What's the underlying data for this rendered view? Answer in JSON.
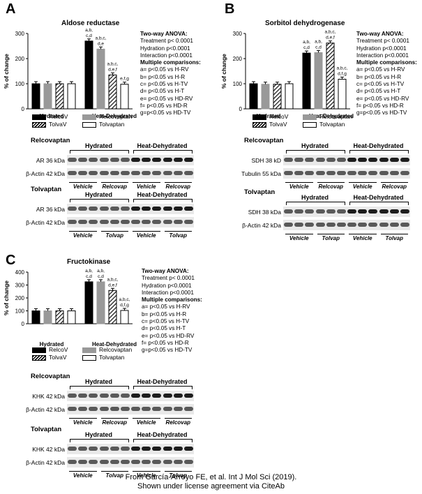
{
  "panels": [
    {
      "id": "A",
      "title": "Aldose reductase",
      "ylabel": "% of change",
      "yticks": [
        "0",
        "100",
        "200",
        "300"
      ],
      "ymax": 300,
      "xlabels": [
        "Hydrated",
        "Heat-Dehydrated"
      ],
      "values": [
        100,
        100,
        100,
        100,
        270,
        238,
        135,
        98
      ],
      "annotations": [
        "",
        "",
        "",
        "",
        "a,b,\nc,d",
        "a,b,c,\nd,e",
        "a,b,c,\nd,e,f",
        "e,f,g"
      ],
      "stats": [
        "Two-way ANOVA:",
        "Treatment p< 0.0001",
        "Hydration p<0.0001",
        "Interaction p<0.0001",
        "Multiple comparisons:",
        "a= p<0.05 vs H-RV",
        "b= p<0.05 vs H-R",
        "c= p<0.05 vs H-TV",
        "d= p<0.05 vs H-T",
        "e= p<0.05 vs HD-RV",
        "f= p<0.05 vs HD-R",
        "g=p<0.05 vs HD-TV"
      ],
      "blots": [
        {
          "head": "Relcovaptan",
          "groups": [
            "Hydrated",
            "Heat-Dehydrated"
          ],
          "rows": [
            "AR 36 kDa",
            "β-Actin 42 kDa"
          ],
          "lanes": [
            "Vehicle",
            "Relcovap",
            "Vehicle",
            "Relcovap"
          ]
        },
        {
          "head": "Tolvaptan",
          "groups": [
            "Hydrated",
            "Heat-Dehydrated"
          ],
          "rows": [
            "AR 36 kDa",
            "β-Actin 42 kDa"
          ],
          "lanes": [
            "Vehicle",
            "Tolvap",
            "Vehicle",
            "Tolvap"
          ]
        }
      ]
    },
    {
      "id": "B",
      "title": "Sorbitol dehydrogenase",
      "ylabel": "% of change",
      "yticks": [
        "0",
        "100",
        "200",
        "300"
      ],
      "ymax": 300,
      "xlabels": [
        "Hydrated",
        "Heat-Dehydrated"
      ],
      "values": [
        100,
        98,
        98,
        100,
        222,
        224,
        262,
        118
      ],
      "annotations": [
        "",
        "",
        "",
        "",
        "a,b,\nc,d",
        "a,b,\nc,d",
        "a,b,c,\nd,e,f",
        "a,b,c,\nd,f,g"
      ],
      "stats": [
        "Two-way ANOVA:",
        "Treatment p< 0.0001",
        "Hydration p<0.0001",
        "Interaction p<0.0001",
        "Multiple comparisons:",
        "a= p<0.05 vs H-RV",
        "b= p<0.05 vs H-R",
        "c= p<0.05 vs H-TV",
        "d= p<0.05 vs H-T",
        "e= p<0.05 vs HD-RV",
        "f= p<0.05 vs HD-R",
        "g=p<0.05 vs HD-TV"
      ],
      "blots": [
        {
          "head": "Relcovaptan",
          "groups": [
            "Hydrated",
            "Heat-Dehydrated"
          ],
          "rows": [
            "SDH 38 kD",
            "Tubulin 55 kDa"
          ],
          "lanes": [
            "Vehicle",
            "Relcovap",
            "Vehicle",
            "Relcovap"
          ]
        },
        {
          "head": "Tolvaptan",
          "groups": [
            "Hydrated",
            "Heat-Dehydrated"
          ],
          "rows": [
            "SDH 38 kDa",
            "β-Actin 42 kDa"
          ],
          "lanes": [
            "Vehicle",
            "Tolvap",
            "Vehicle",
            "Tolvap"
          ]
        }
      ]
    },
    {
      "id": "C",
      "title": "Fructokinase",
      "ylabel": "% of change",
      "yticks": [
        "0",
        "100",
        "200",
        "300",
        "400"
      ],
      "ymax": 400,
      "xlabels": [
        "Hydrated",
        "Heat-Dehydrated"
      ],
      "values": [
        100,
        100,
        100,
        100,
        325,
        325,
        258,
        103
      ],
      "annotations": [
        "",
        "",
        "",
        "",
        "a,b,\nc,d",
        "a,b,\nc,d",
        "a,b,c,\nd,e,f",
        "a,b,c,\nd,f,g"
      ],
      "stats": [
        "Two-way ANOVA:",
        "Treatment p< 0.0001",
        "Hydration p<0.0001",
        "Interaction p<0.0001",
        "Multiple comparisons:",
        "a= p<0.05 vs H-RV",
        "b= p<0.05 vs H-R",
        "c= p<0.05 vs H-TV",
        "d= p<0.05 vs H-T",
        "e= p<0.05 vs HD-RV",
        "f= p<0.05 vs HD-R",
        "g=p<0.05 vs HD-TV"
      ],
      "blots": [
        {
          "head": "Relcovaptan",
          "groups": [
            "Hydrated",
            "Heat-Dehydrated"
          ],
          "rows": [
            "KHK 42 kDa",
            "β-Actin 42 kDa"
          ],
          "lanes": [
            "Vehicle",
            "Relcovap",
            "Vehicle",
            "Relcovap"
          ]
        },
        {
          "head": "Tolvaptan",
          "groups": [
            "Hydrated",
            "Heat-Dehydrated"
          ],
          "rows": [
            "KHK 42 kDa",
            "β-Actin 42 kDa"
          ],
          "lanes": [
            "Vehicle",
            "Tolvap",
            "Vehicle",
            "Tolvap"
          ]
        }
      ]
    }
  ],
  "legend": [
    {
      "name": "RelcoV",
      "style": "black"
    },
    {
      "name": "Relcovaptan",
      "style": "gray"
    },
    {
      "name": "TolvaV",
      "style": "hatch"
    },
    {
      "name": "Tolvaptan",
      "style": "white"
    }
  ],
  "footer": [
    "From García-Arroyo FE, et al. Int J Mol Sci (2019).",
    "Shown under license agreement via CiteAb"
  ],
  "chart_data": [
    {
      "type": "bar",
      "title": "Aldose reductase",
      "ylabel": "% of change",
      "ylim": [
        0,
        300
      ],
      "categories": [
        "Hydrated",
        "Heat-Dehydrated"
      ],
      "series": [
        {
          "name": "RelcoV",
          "values": [
            100,
            270
          ]
        },
        {
          "name": "Relcovaptan",
          "values": [
            100,
            238
          ]
        },
        {
          "name": "TolvaV",
          "values": [
            100,
            135
          ]
        },
        {
          "name": "Tolvaptan",
          "values": [
            100,
            98
          ]
        }
      ]
    },
    {
      "type": "bar",
      "title": "Sorbitol dehydrogenase",
      "ylabel": "% of change",
      "ylim": [
        0,
        300
      ],
      "categories": [
        "Hydrated",
        "Heat-Dehydrated"
      ],
      "series": [
        {
          "name": "RelcoV",
          "values": [
            100,
            222
          ]
        },
        {
          "name": "Relcovaptan",
          "values": [
            98,
            224
          ]
        },
        {
          "name": "TolvaV",
          "values": [
            98,
            262
          ]
        },
        {
          "name": "Tolvaptan",
          "values": [
            100,
            118
          ]
        }
      ]
    },
    {
      "type": "bar",
      "title": "Fructokinase",
      "ylabel": "% of change",
      "ylim": [
        0,
        400
      ],
      "categories": [
        "Hydrated",
        "Heat-Dehydrated"
      ],
      "series": [
        {
          "name": "RelcoV",
          "values": [
            100,
            325
          ]
        },
        {
          "name": "Relcovaptan",
          "values": [
            100,
            325
          ]
        },
        {
          "name": "TolvaV",
          "values": [
            100,
            258
          ]
        },
        {
          "name": "Tolvaptan",
          "values": [
            100,
            103
          ]
        }
      ]
    }
  ]
}
